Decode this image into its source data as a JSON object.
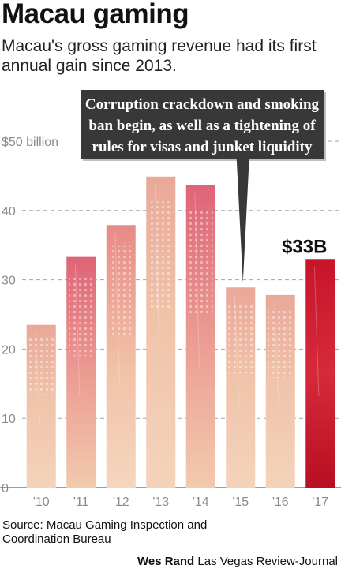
{
  "header": {
    "title": "Macau gaming",
    "subtitle": "Macau's gross gaming revenue had its first annual gain since 2013."
  },
  "colors": {
    "bar_light": "#f1c8ad",
    "bar_mid": "#e79a8c",
    "bar_pink": "#e36d7e",
    "bar_highlight": "#d11f34",
    "callout_bg": "#383838",
    "callout_text": "#ffffff",
    "gridline": "#9aa6b8",
    "axis_text": "#8a8a8a"
  },
  "chart_data": {
    "type": "bar",
    "categories": [
      "'10",
      "'11",
      "'12",
      "'13",
      "'14",
      "'15",
      "'16",
      "'17"
    ],
    "values": [
      23.5,
      33.3,
      37.9,
      44.9,
      43.7,
      28.9,
      27.8,
      33.0
    ],
    "y_tick_labels": [
      "0",
      "10",
      "20",
      "30",
      "40",
      "$50 billion"
    ],
    "ylim": [
      0,
      50
    ],
    "grid": true,
    "highlight_index": 7,
    "highlight_label": "$33B",
    "annotation": {
      "lines": [
        "Corruption crackdown and smoking",
        "ban begin, as well as a tightening of",
        "rules for visas and junket liquidity"
      ],
      "points_to_category": "'15"
    }
  },
  "footer": {
    "source_line1": "Source: Macau Gaming Inspection and",
    "source_line2": "Coordination Bureau",
    "credit_name": "Wes Rand",
    "credit_org": "Las Vegas Review-Journal"
  }
}
